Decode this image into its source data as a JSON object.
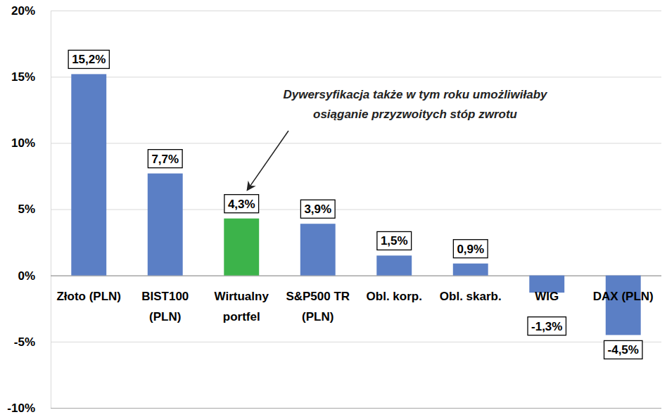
{
  "chart_data": {
    "type": "bar",
    "categories": [
      "Złoto (PLN)",
      "BIST100\n(PLN)",
      "Wirtualny\nportfel",
      "S&P500 TR\n(PLN)",
      "Obl. korp.",
      "Obl. skarb.",
      "WIG",
      "DAX (PLN)"
    ],
    "values": [
      15.2,
      7.7,
      4.3,
      3.9,
      1.5,
      0.9,
      -1.3,
      -4.5
    ],
    "value_labels": [
      "15,2%",
      "7,7%",
      "4,3%",
      "3,9%",
      "1,5%",
      "0,9%",
      "-1,3%",
      "-4,5%"
    ],
    "colors": [
      "#5b7fc5",
      "#5b7fc5",
      "#3cb34a",
      "#5b7fc5",
      "#5b7fc5",
      "#5b7fc5",
      "#5b7fc5",
      "#5b7fc5"
    ],
    "ylim": [
      -10,
      20
    ],
    "yticks": [
      {
        "value": -10,
        "label": "-10%"
      },
      {
        "value": -5,
        "label": "-5%"
      },
      {
        "value": 0,
        "label": "0%"
      },
      {
        "value": 5,
        "label": "5%"
      },
      {
        "value": 10,
        "label": "10%"
      },
      {
        "value": 15,
        "label": "15%"
      },
      {
        "value": 20,
        "label": "20%"
      }
    ],
    "grid": true,
    "data_labels": true,
    "annotation": "Dywersyfikacja także w tym roku umożliwiłaby\nosiąganie przyzwoitych stóp zwrotu"
  }
}
